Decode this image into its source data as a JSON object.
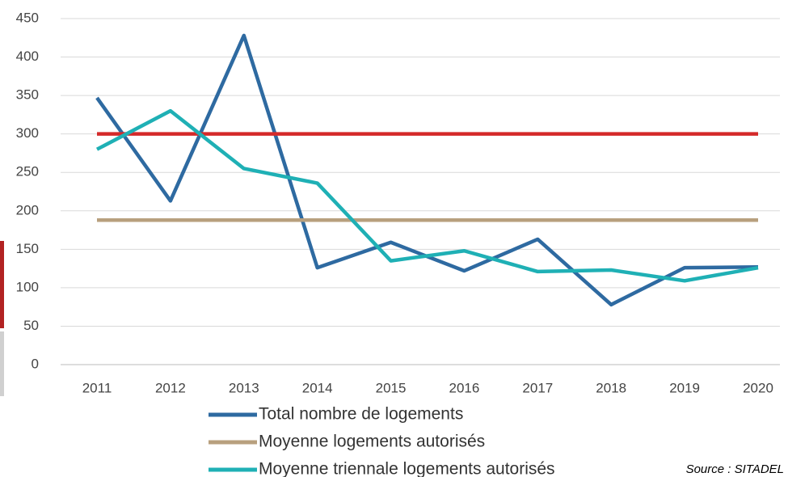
{
  "chart_data": {
    "type": "line",
    "categories": [
      "2011",
      "2012",
      "2013",
      "2014",
      "2015",
      "2016",
      "2017",
      "2018",
      "2019",
      "2020"
    ],
    "series": [
      {
        "name": "Total nombre de logements",
        "color": "#2e6aa1",
        "values": [
          347,
          213,
          428,
          126,
          159,
          122,
          163,
          78,
          126,
          127
        ]
      },
      {
        "color": "#d42a2a",
        "values": [
          300,
          300,
          300,
          300,
          300,
          300,
          300,
          300,
          300,
          300
        ]
      },
      {
        "name": "Moyenne logements autorisés",
        "color": "#b8a07e",
        "values": [
          188,
          188,
          188,
          188,
          188,
          188,
          188,
          188,
          188,
          188
        ]
      },
      {
        "name": "Moyenne triennale logements autorisés",
        "color": "#1fb0b5",
        "values": [
          280,
          330,
          255,
          236,
          135,
          148,
          121,
          123,
          109,
          126
        ]
      }
    ],
    "ylim": [
      0,
      450
    ],
    "yticks": [
      0,
      50,
      100,
      150,
      200,
      250,
      300,
      350,
      400,
      450
    ],
    "grid": true,
    "source": "Source : SITADEL"
  }
}
